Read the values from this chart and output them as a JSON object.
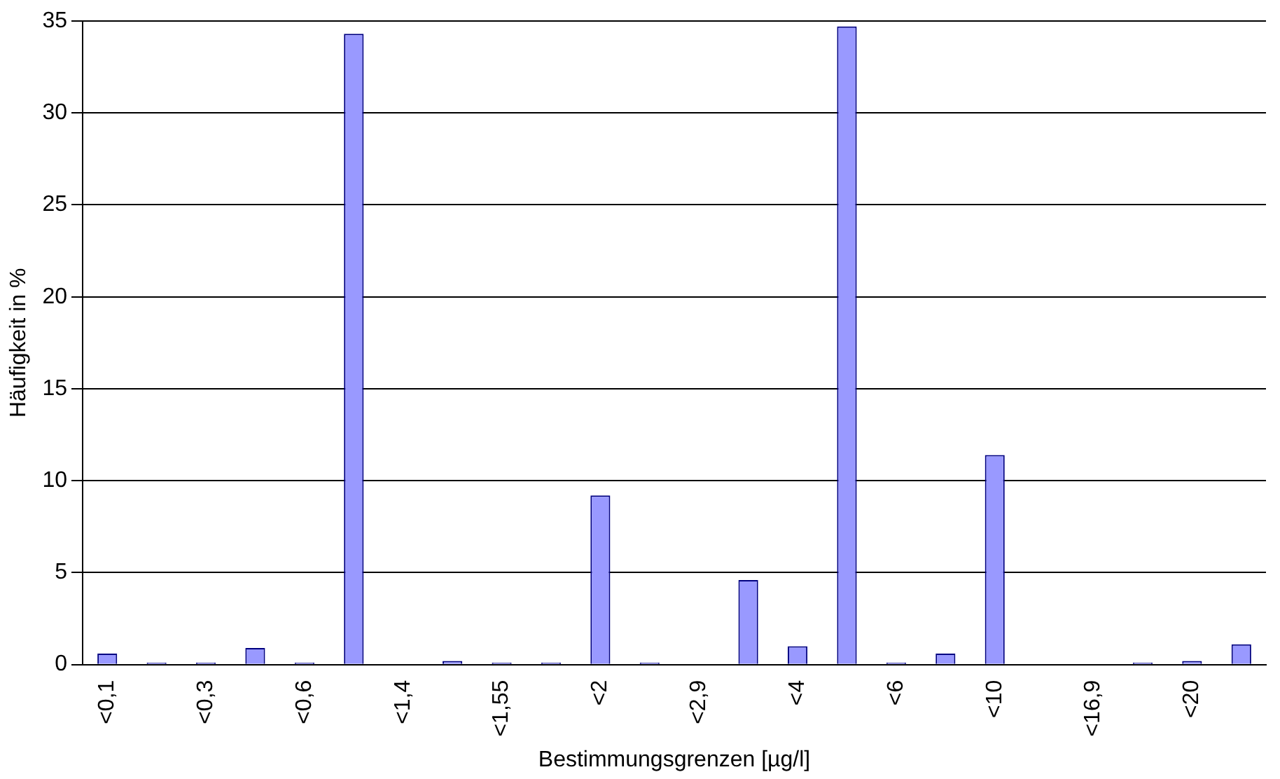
{
  "chart_data": {
    "type": "bar",
    "xlabel": "Bestimmungsgrenzen [µg/l]",
    "ylabel": "Häufigkeit in %",
    "categories": [
      "<0,1",
      null,
      "<0,3",
      null,
      "<0,6",
      null,
      "<1,4",
      null,
      "<1,55",
      null,
      "<2",
      null,
      "<2,9",
      null,
      "<4",
      null,
      "<6",
      null,
      "<10",
      null,
      "<16,9",
      null,
      "<20",
      null
    ],
    "values": [
      0.6,
      0.1,
      0.1,
      0.9,
      0.1,
      34.3,
      0,
      0.2,
      0.1,
      0.1,
      9.2,
      0.1,
      0,
      4.6,
      1.0,
      34.7,
      0.1,
      0.6,
      11.4,
      0,
      0,
      0.1,
      0.2,
      1.1
    ],
    "color": "#9999ff",
    "ylim": [
      0,
      35
    ],
    "yticks": [
      0,
      5,
      10,
      15,
      20,
      25,
      30,
      35
    ],
    "grid": "y",
    "legend": false
  }
}
